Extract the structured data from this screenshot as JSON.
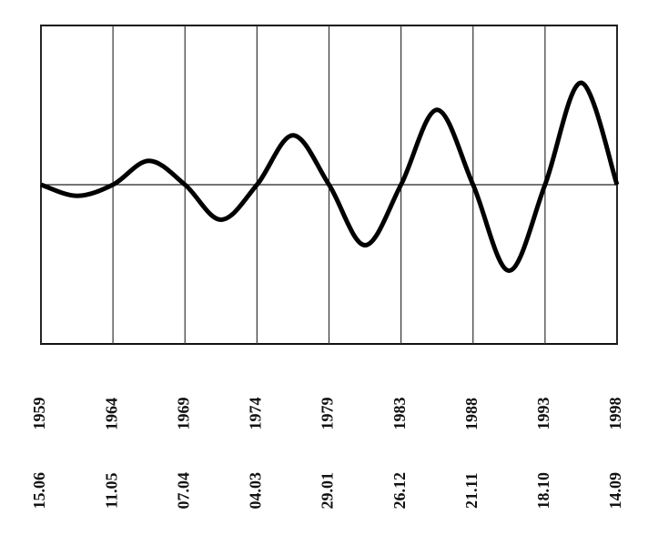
{
  "chart_data": {
    "type": "line",
    "x": [
      0,
      0.5,
      1,
      1.5,
      2,
      2.5,
      3,
      3.5,
      4,
      4.5,
      5,
      5.5,
      6,
      6.5,
      7,
      7.5,
      8
    ],
    "series": [
      {
        "color": "#000000",
        "values": [
          0,
          -0.07,
          0,
          0.15,
          0,
          -0.22,
          0,
          0.31,
          0,
          -0.38,
          0,
          0.47,
          0,
          -0.54,
          0,
          0.64,
          0
        ]
      }
    ],
    "xlim": [
      0,
      8
    ],
    "xticks": [
      {
        "value": 0,
        "label": "15.06 1959"
      },
      {
        "value": 1,
        "label": "11.05 1964"
      },
      {
        "value": 2,
        "label": "07.04 1969"
      },
      {
        "value": 3,
        "label": "04.03 1974"
      },
      {
        "value": 4,
        "label": "29.01 1979"
      },
      {
        "value": 5,
        "label": "26.12 1983"
      },
      {
        "value": 6,
        "label": "21.11 1988"
      },
      {
        "value": 7,
        "label": "18.10 1993"
      },
      {
        "value": 8,
        "label": "14.09 1998"
      }
    ],
    "ylim": [
      -1,
      1
    ],
    "grid": true
  }
}
